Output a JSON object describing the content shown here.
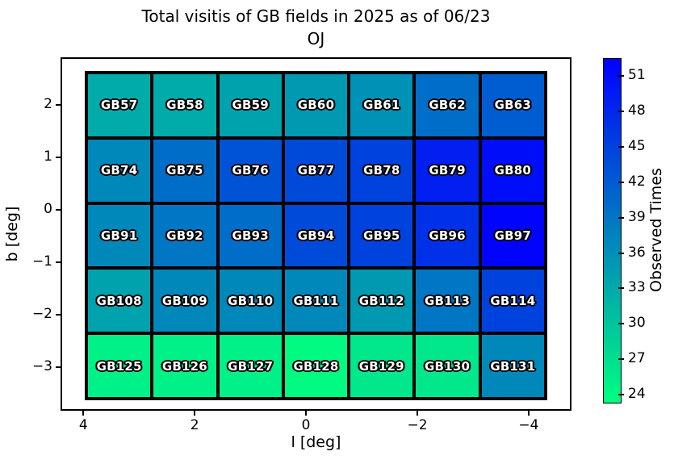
{
  "chart_data": {
    "type": "heatmap",
    "title": "Total visitis of GB fields in 2025 as of 06/23",
    "subtitle": "OJ",
    "xlabel": "l [deg]",
    "ylabel": "b [deg]",
    "colorbar_label": "Observed Times",
    "x_axis": {
      "tick_values": [
        4,
        2,
        0,
        -2,
        -4
      ],
      "tick_labels": [
        "4",
        "2",
        "0",
        "−2",
        "−4"
      ],
      "min": -4.77,
      "max": 4.41,
      "reversed": true
    },
    "y_axis": {
      "tick_values": [
        2,
        1,
        0,
        -1,
        -2,
        -3
      ],
      "tick_labels": [
        "2",
        "1",
        "0",
        "−1",
        "−2",
        "−3"
      ],
      "min": -3.83,
      "max": 2.91
    },
    "colorbar": {
      "min": 23.4,
      "max": 52.5,
      "tick_values": [
        51,
        48,
        45,
        42,
        39,
        36,
        33,
        30,
        27,
        24
      ],
      "tick_labels": [
        "51",
        "48",
        "45",
        "42",
        "39",
        "36",
        "33",
        "30",
        "27",
        "24"
      ],
      "cmap": "winter_r",
      "color_low": "#00ff80",
      "color_high": "#0000ff"
    },
    "grid": {
      "columns": 7,
      "rows": 5,
      "l_extent": [
        3.98,
        -4.34
      ],
      "b_extent": [
        2.65,
        -3.63
      ]
    },
    "rows": [
      [
        {
          "name": "GB57",
          "value": 33
        },
        {
          "name": "GB58",
          "value": 33
        },
        {
          "name": "GB59",
          "value": 34
        },
        {
          "name": "GB60",
          "value": 35
        },
        {
          "name": "GB61",
          "value": 36
        },
        {
          "name": "GB62",
          "value": 40
        },
        {
          "name": "GB63",
          "value": 42
        }
      ],
      [
        {
          "name": "GB74",
          "value": 37
        },
        {
          "name": "GB75",
          "value": 40
        },
        {
          "name": "GB76",
          "value": 43
        },
        {
          "name": "GB77",
          "value": 44
        },
        {
          "name": "GB78",
          "value": 45
        },
        {
          "name": "GB79",
          "value": 49
        },
        {
          "name": "GB80",
          "value": 51
        }
      ],
      [
        {
          "name": "GB91",
          "value": 37
        },
        {
          "name": "GB92",
          "value": 39
        },
        {
          "name": "GB93",
          "value": 40
        },
        {
          "name": "GB94",
          "value": 44
        },
        {
          "name": "GB95",
          "value": 45
        },
        {
          "name": "GB96",
          "value": 47
        },
        {
          "name": "GB97",
          "value": 52
        }
      ],
      [
        {
          "name": "GB108",
          "value": 34
        },
        {
          "name": "GB109",
          "value": 37
        },
        {
          "name": "GB110",
          "value": 37
        },
        {
          "name": "GB111",
          "value": 37
        },
        {
          "name": "GB112",
          "value": 35
        },
        {
          "name": "GB113",
          "value": 39
        },
        {
          "name": "GB114",
          "value": 45
        }
      ],
      [
        {
          "name": "GB125",
          "value": 25
        },
        {
          "name": "GB126",
          "value": 25
        },
        {
          "name": "GB127",
          "value": 25
        },
        {
          "name": "GB128",
          "value": 24
        },
        {
          "name": "GB129",
          "value": 26
        },
        {
          "name": "GB130",
          "value": 26
        },
        {
          "name": "GB131",
          "value": 37
        }
      ]
    ]
  }
}
